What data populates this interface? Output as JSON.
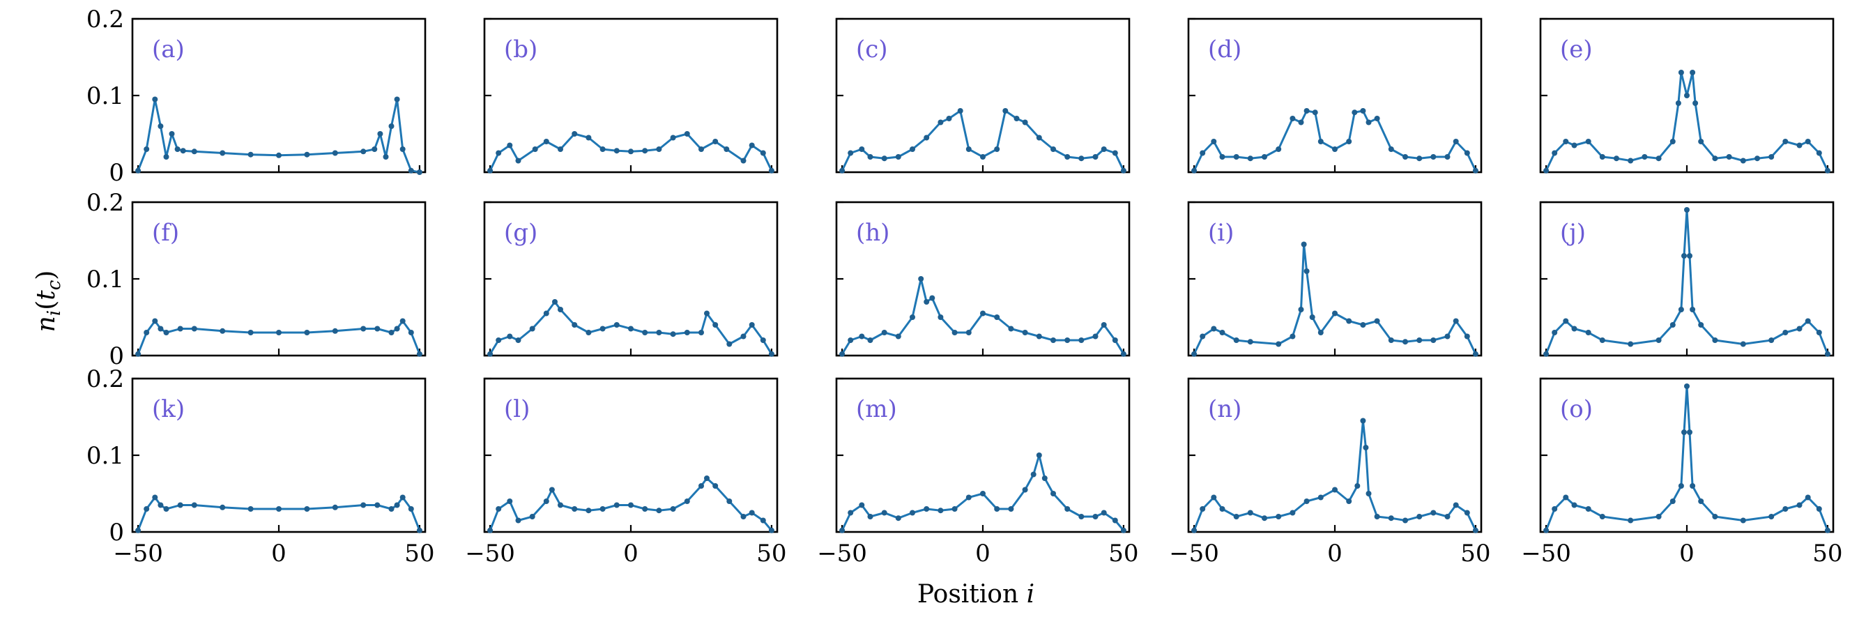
{
  "chart_data": {
    "type": "line",
    "layout": "3x5 grid of subplots sharing x and y axes",
    "xlabel": "Position i",
    "ylabel": "n_i(t_c)",
    "xlim": [
      -52,
      52
    ],
    "ylim": [
      0,
      0.2
    ],
    "xticks": [
      -50,
      0,
      50
    ],
    "xtick_labels": [
      "−50",
      "0",
      "50"
    ],
    "yticks": [
      0,
      0.1,
      0.2
    ],
    "ytick_labels": [
      "0",
      "0.1",
      "0.2"
    ],
    "series_color": "#1f77b4",
    "label_color": "#6a5ad5",
    "marker": "dot",
    "panels": [
      {
        "label": "(a)",
        "x": [
          -50,
          -47,
          -44,
          -42,
          -40,
          -38,
          -36,
          -34,
          -30,
          -20,
          -10,
          0,
          10,
          20,
          30,
          34,
          36,
          38,
          40,
          42,
          44,
          47,
          50
        ],
        "y": [
          0.002,
          0.03,
          0.095,
          0.06,
          0.02,
          0.05,
          0.03,
          0.028,
          0.027,
          0.025,
          0.023,
          0.022,
          0.023,
          0.025,
          0.027,
          0.03,
          0.05,
          0.02,
          0.06,
          0.095,
          0.03,
          0.002,
          0.0
        ]
      },
      {
        "label": "(b)",
        "x": [
          -50,
          -47,
          -43,
          -40,
          -34,
          -30,
          -25,
          -20,
          -15,
          -10,
          -5,
          0,
          5,
          10,
          15,
          20,
          25,
          30,
          34,
          40,
          43,
          47,
          50
        ],
        "y": [
          0.002,
          0.025,
          0.035,
          0.015,
          0.03,
          0.04,
          0.03,
          0.05,
          0.045,
          0.03,
          0.028,
          0.027,
          0.028,
          0.03,
          0.045,
          0.05,
          0.03,
          0.04,
          0.03,
          0.015,
          0.035,
          0.025,
          0.002
        ]
      },
      {
        "label": "(c)",
        "x": [
          -50,
          -47,
          -43,
          -40,
          -35,
          -30,
          -25,
          -20,
          -15,
          -12,
          -8,
          -5,
          0,
          5,
          8,
          12,
          15,
          20,
          25,
          30,
          35,
          40,
          43,
          47,
          50
        ],
        "y": [
          0.002,
          0.025,
          0.03,
          0.02,
          0.018,
          0.02,
          0.03,
          0.045,
          0.065,
          0.07,
          0.08,
          0.03,
          0.02,
          0.03,
          0.08,
          0.07,
          0.065,
          0.045,
          0.03,
          0.02,
          0.018,
          0.02,
          0.03,
          0.025,
          0.002
        ]
      },
      {
        "label": "(d)",
        "x": [
          -50,
          -47,
          -43,
          -40,
          -35,
          -30,
          -25,
          -20,
          -15,
          -12,
          -10,
          -7,
          -5,
          0,
          5,
          7,
          10,
          12,
          15,
          20,
          25,
          30,
          35,
          40,
          43,
          47,
          50
        ],
        "y": [
          0.002,
          0.025,
          0.04,
          0.02,
          0.02,
          0.018,
          0.02,
          0.03,
          0.07,
          0.065,
          0.08,
          0.078,
          0.04,
          0.03,
          0.04,
          0.078,
          0.08,
          0.065,
          0.07,
          0.03,
          0.02,
          0.018,
          0.02,
          0.02,
          0.04,
          0.025,
          0.002
        ]
      },
      {
        "label": "(e)",
        "x": [
          -50,
          -47,
          -43,
          -40,
          -35,
          -30,
          -25,
          -20,
          -15,
          -10,
          -5,
          -3,
          -2,
          0,
          2,
          3,
          5,
          10,
          15,
          20,
          25,
          30,
          35,
          40,
          43,
          47,
          50
        ],
        "y": [
          0.002,
          0.025,
          0.04,
          0.035,
          0.04,
          0.02,
          0.018,
          0.015,
          0.02,
          0.018,
          0.04,
          0.09,
          0.13,
          0.1,
          0.13,
          0.09,
          0.04,
          0.018,
          0.02,
          0.015,
          0.018,
          0.02,
          0.04,
          0.035,
          0.04,
          0.025,
          0.002
        ]
      },
      {
        "label": "(f)",
        "x": [
          -50,
          -47,
          -44,
          -42,
          -40,
          -35,
          -30,
          -20,
          -10,
          0,
          10,
          20,
          30,
          35,
          40,
          42,
          44,
          47,
          50
        ],
        "y": [
          0.002,
          0.03,
          0.045,
          0.035,
          0.03,
          0.035,
          0.035,
          0.032,
          0.03,
          0.03,
          0.03,
          0.032,
          0.035,
          0.035,
          0.03,
          0.035,
          0.045,
          0.03,
          0.002
        ]
      },
      {
        "label": "(g)",
        "x": [
          -50,
          -47,
          -43,
          -40,
          -35,
          -30,
          -27,
          -25,
          -20,
          -15,
          -10,
          -5,
          0,
          5,
          10,
          15,
          20,
          25,
          27,
          30,
          35,
          40,
          43,
          47,
          50
        ],
        "y": [
          0.002,
          0.02,
          0.025,
          0.02,
          0.035,
          0.055,
          0.07,
          0.06,
          0.04,
          0.03,
          0.035,
          0.04,
          0.035,
          0.03,
          0.03,
          0.028,
          0.03,
          0.03,
          0.055,
          0.04,
          0.015,
          0.025,
          0.04,
          0.02,
          0.002
        ]
      },
      {
        "label": "(h)",
        "x": [
          -50,
          -47,
          -43,
          -40,
          -35,
          -30,
          -25,
          -22,
          -20,
          -18,
          -15,
          -10,
          -5,
          0,
          5,
          10,
          15,
          20,
          25,
          30,
          35,
          40,
          43,
          47,
          50
        ],
        "y": [
          0.002,
          0.02,
          0.025,
          0.02,
          0.03,
          0.025,
          0.05,
          0.1,
          0.07,
          0.075,
          0.05,
          0.03,
          0.03,
          0.055,
          0.05,
          0.035,
          0.03,
          0.025,
          0.02,
          0.02,
          0.02,
          0.025,
          0.04,
          0.02,
          0.002
        ]
      },
      {
        "label": "(i)",
        "x": [
          -50,
          -47,
          -43,
          -40,
          -35,
          -30,
          -20,
          -15,
          -12,
          -11,
          -10,
          -8,
          -5,
          0,
          5,
          10,
          15,
          20,
          25,
          30,
          35,
          40,
          43,
          47,
          50
        ],
        "y": [
          0.002,
          0.025,
          0.035,
          0.03,
          0.02,
          0.018,
          0.015,
          0.025,
          0.06,
          0.145,
          0.11,
          0.05,
          0.03,
          0.055,
          0.045,
          0.04,
          0.045,
          0.02,
          0.018,
          0.02,
          0.02,
          0.025,
          0.045,
          0.025,
          0.002
        ]
      },
      {
        "label": "(j)",
        "x": [
          -50,
          -47,
          -43,
          -40,
          -35,
          -30,
          -20,
          -10,
          -5,
          -2,
          -1,
          0,
          1,
          2,
          5,
          10,
          20,
          30,
          35,
          40,
          43,
          47,
          50
        ],
        "y": [
          0.002,
          0.03,
          0.045,
          0.035,
          0.03,
          0.02,
          0.015,
          0.02,
          0.04,
          0.06,
          0.13,
          0.19,
          0.13,
          0.06,
          0.04,
          0.02,
          0.015,
          0.02,
          0.03,
          0.035,
          0.045,
          0.03,
          0.002
        ]
      },
      {
        "label": "(k)",
        "x": [
          -50,
          -47,
          -44,
          -42,
          -40,
          -35,
          -30,
          -20,
          -10,
          0,
          10,
          20,
          30,
          35,
          40,
          42,
          44,
          47,
          50
        ],
        "y": [
          0.002,
          0.03,
          0.045,
          0.035,
          0.03,
          0.035,
          0.035,
          0.032,
          0.03,
          0.03,
          0.03,
          0.032,
          0.035,
          0.035,
          0.03,
          0.035,
          0.045,
          0.03,
          0.002
        ]
      },
      {
        "label": "(l)",
        "x": [
          -50,
          -47,
          -43,
          -40,
          -35,
          -30,
          -28,
          -25,
          -20,
          -15,
          -10,
          -5,
          0,
          5,
          10,
          15,
          20,
          25,
          27,
          30,
          35,
          40,
          43,
          47,
          50
        ],
        "y": [
          0.002,
          0.03,
          0.04,
          0.015,
          0.02,
          0.04,
          0.055,
          0.035,
          0.03,
          0.028,
          0.03,
          0.035,
          0.035,
          0.03,
          0.028,
          0.03,
          0.04,
          0.06,
          0.07,
          0.06,
          0.04,
          0.02,
          0.025,
          0.015,
          0.002
        ]
      },
      {
        "label": "(m)",
        "x": [
          -50,
          -47,
          -43,
          -40,
          -35,
          -30,
          -25,
          -20,
          -15,
          -10,
          -5,
          0,
          5,
          10,
          15,
          18,
          20,
          22,
          25,
          30,
          35,
          40,
          43,
          47,
          50
        ],
        "y": [
          0.002,
          0.025,
          0.035,
          0.02,
          0.025,
          0.018,
          0.025,
          0.03,
          0.028,
          0.03,
          0.045,
          0.05,
          0.03,
          0.03,
          0.055,
          0.075,
          0.1,
          0.07,
          0.05,
          0.03,
          0.02,
          0.02,
          0.025,
          0.015,
          0.002
        ]
      },
      {
        "label": "(n)",
        "x": [
          -50,
          -47,
          -43,
          -40,
          -35,
          -30,
          -25,
          -20,
          -15,
          -10,
          -5,
          0,
          5,
          8,
          10,
          11,
          12,
          15,
          20,
          25,
          30,
          35,
          40,
          43,
          47,
          50
        ],
        "y": [
          0.002,
          0.03,
          0.045,
          0.03,
          0.02,
          0.025,
          0.018,
          0.02,
          0.025,
          0.04,
          0.045,
          0.055,
          0.04,
          0.06,
          0.145,
          0.11,
          0.05,
          0.02,
          0.018,
          0.015,
          0.02,
          0.025,
          0.02,
          0.035,
          0.025,
          0.002
        ]
      },
      {
        "label": "(o)",
        "x": [
          -50,
          -47,
          -43,
          -40,
          -35,
          -30,
          -20,
          -10,
          -5,
          -2,
          -1,
          0,
          1,
          2,
          5,
          10,
          20,
          30,
          35,
          40,
          43,
          47,
          50
        ],
        "y": [
          0.002,
          0.03,
          0.045,
          0.035,
          0.03,
          0.02,
          0.015,
          0.02,
          0.04,
          0.06,
          0.13,
          0.19,
          0.13,
          0.06,
          0.04,
          0.02,
          0.015,
          0.02,
          0.03,
          0.035,
          0.045,
          0.03,
          0.002
        ]
      }
    ]
  }
}
